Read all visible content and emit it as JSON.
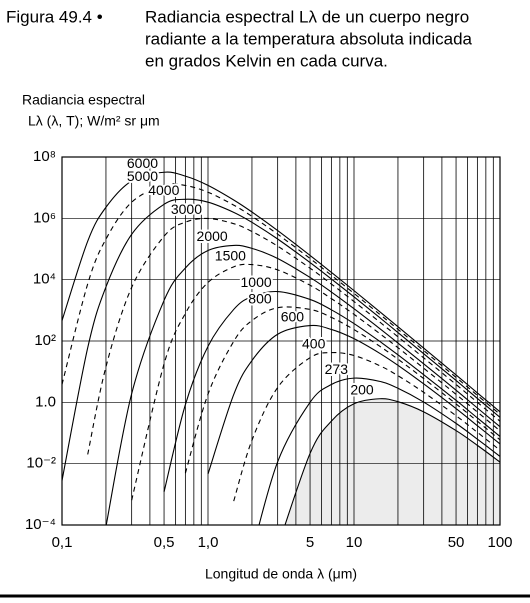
{
  "chart_data": {
    "type": "line",
    "figure_label": "Figura 49.4  •",
    "title": [
      "Radiancia espectral Lλ de un cuerpo negro",
      "radiante a la temperatura absoluta indicada",
      "en grados Kelvin en cada curva."
    ],
    "y_label": [
      "Radiancia espectral",
      "Lλ (λ, T); W/m² sr μm"
    ],
    "x_label": "Longitud de onda λ (μm)",
    "xscale": "log",
    "yscale": "log",
    "xlim": [
      0.1,
      100
    ],
    "ylim": [
      0.0001,
      100000000.0
    ],
    "xticks": [
      {
        "value": 0.1,
        "label": "0,1"
      },
      {
        "value": 0.5,
        "label": "0,5"
      },
      {
        "value": 1,
        "label": "1,0"
      },
      5,
      10,
      50,
      100
    ],
    "yticks": [
      {
        "value": 0.0001,
        "label": "10⁻⁴"
      },
      {
        "value": 0.01,
        "label": "10⁻²"
      },
      {
        "value": 1,
        "label": "1.0"
      },
      {
        "value": 100,
        "label": "10²"
      },
      {
        "value": 10000,
        "label": "10⁴"
      },
      {
        "value": 1000000,
        "label": "10⁶"
      },
      {
        "value": 100000000,
        "label": "10⁸"
      }
    ],
    "x_minor_grid": [
      0.2,
      0.3,
      0.4,
      0.6,
      0.7,
      0.8,
      0.9,
      2,
      3,
      4,
      6,
      7,
      8,
      9,
      20,
      30,
      40,
      60,
      70,
      80,
      90
    ],
    "grid": true,
    "x": [
      0.1,
      0.15,
      0.2,
      0.3,
      0.5,
      0.7,
      1,
      1.5,
      2,
      3,
      5,
      7,
      10,
      15,
      20,
      30,
      50,
      70,
      100
    ],
    "series": [
      {
        "name": "6000",
        "color": "#000000",
        "dash": false,
        "values": [
          460,
          180000,
          2300000,
          16600000,
          31800000,
          23800000,
          11900000,
          3970000,
          1610000,
          400000,
          61900,
          17300,
          4390,
          904,
          292,
          58.9,
          7.85,
          2.03,
          0.491
        ]
      },
      {
        "name": "5000",
        "color": "#000000",
        "dash": true,
        "values": [
          3.8,
          7300,
          210000,
          3350000,
          12100000,
          11800000,
          7100000,
          2700000,
          1160000,
          304000,
          49000,
          13900,
          3570,
          742,
          241,
          48.7,
          6.5,
          1.69,
          0.408
        ]
      },
      {
        "name": "4000",
        "color": "#000000",
        "dash": false,
        "values": [
          0.0028,
          60,
          5800,
          300000,
          2860000,
          4180000,
          3360000,
          1570000,
          740000,
          212000,
          36200,
          10500,
          2750,
          579,
          189,
          38.5,
          5.17,
          1.34,
          0.325
        ]
      },
      {
        "name": "3000",
        "color": "#000000",
        "dash": true,
        "values": [
          null,
          0.02,
          14.4,
          5600,
          260000,
          750000,
          990000,
          670000,
          372000,
          124000,
          23700,
          7200,
          1940,
          416,
          137,
          28.3,
          3.83,
          1.0,
          0.242
        ]
      },
      {
        "name": "2000",
        "color": "#000000",
        "dash": false,
        "values": [
          null,
          null,
          8.9e-05,
          1.9,
          2100,
          24000,
          89500,
          131000,
          105000,
          49000,
          11800,
          3950,
          1130,
          255,
          86,
          18.1,
          2.49,
          0.654,
          0.16
        ]
      },
      {
        "name": "1500",
        "color": "#000000",
        "dash": true,
        "values": [
          null,
          null,
          null,
          0.00064,
          17.8,
          793,
          8100,
          26200,
          31000,
          20900,
          6600,
          2410,
          740,
          175,
          60.5,
          13,
          1.82,
          0.483,
          0.118
        ]
      },
      {
        "name": "1000",
        "color": "#000000",
        "dash": false,
        "values": [
          null,
          null,
          null,
          null,
          0.0012,
          0.84,
          67,
          1070,
          2800,
          4100,
          2270,
          1040,
          370,
          97.4,
          35.3,
          7.96,
          1.16,
          0.31,
          0.077
        ]
      },
      {
        "name": "800",
        "color": "#000000",
        "dash": true,
        "values": [
          null,
          null,
          null,
          null,
          null,
          0.0049,
          1.84,
          97,
          463,
          1220,
          1070,
          588,
          236,
          67.7,
          25.5,
          5.97,
          0.89,
          0.242,
          0.06
        ]
      },
      {
        "name": "600",
        "color": "#000000",
        "dash": false,
        "values": [
          null,
          null,
          null,
          null,
          null,
          null,
          0.0046,
          1.79,
          23.1,
          166,
          318,
          238,
          119,
          39.7,
          16.1,
          4.0,
          0.626,
          0.173,
          0.044
        ]
      },
      {
        "name": "400",
        "color": "#000000",
        "dash": true,
        "values": [
          null,
          null,
          null,
          null,
          null,
          null,
          null,
          0.0006,
          0.058,
          3.04,
          28.6,
          41.8,
          33.6,
          15.7,
          7.4,
          2.12,
          0.366,
          0.105,
          0.0275
        ]
      },
      {
        "name": "273",
        "color": "#000000",
        "dash": false,
        "values": [
          null,
          null,
          null,
          null,
          null,
          null,
          null,
          null,
          1.3e-05,
          0.0115,
          1.0,
          3.81,
          6.16,
          4.82,
          2.88,
          1.02,
          0.206,
          0.063,
          0.0172
        ]
      },
      {
        "name": "200",
        "color": "#000000",
        "dash": false,
        "fill": "#ececec",
        "values": [
          null,
          null,
          null,
          null,
          null,
          null,
          null,
          null,
          null,
          1.9e-05,
          0.0215,
          0.244,
          0.895,
          1.31,
          1.05,
          0.49,
          0.12,
          0.0395,
          0.0113
        ]
      }
    ]
  }
}
